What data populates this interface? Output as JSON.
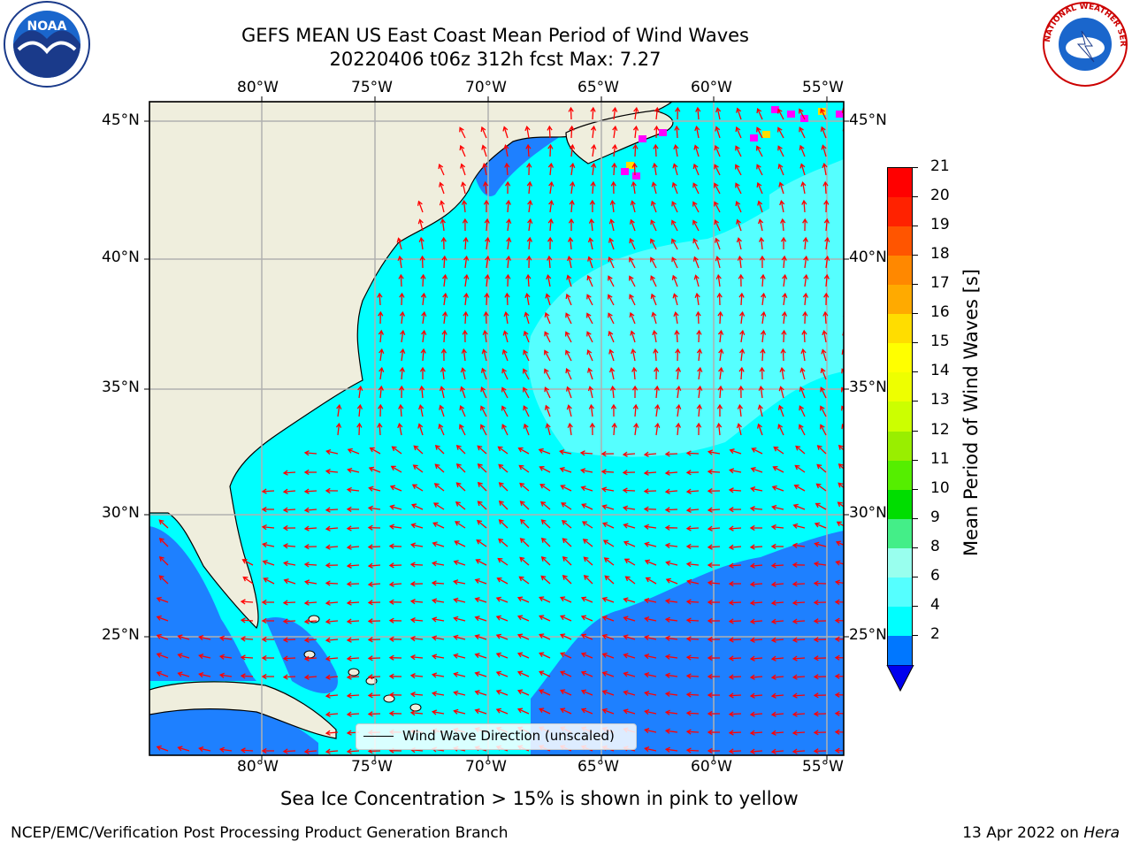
{
  "title": {
    "line1": "GEFS MEAN US East Coast Mean Period of Wind Waves",
    "line2": "20220406 t06z 312h fcst   Max: 7.27"
  },
  "axes": {
    "lon_labels": [
      "80°W",
      "75°W",
      "70°W",
      "65°W",
      "60°W",
      "55°W"
    ],
    "lat_labels": [
      "45°N",
      "40°N",
      "35°N",
      "30°N",
      "25°N"
    ]
  },
  "legend": {
    "label": "Wind Wave Direction (unscaled)"
  },
  "colorbar": {
    "label": "Mean Period of Wind Waves [s]",
    "ticks": [
      "21",
      "20",
      "19",
      "18",
      "17",
      "16",
      "15",
      "14",
      "13",
      "12",
      "11",
      "10",
      "9",
      "8",
      "6",
      "4",
      "2"
    ],
    "colors": [
      "#ff0000",
      "#ff2200",
      "#ff5500",
      "#ff8800",
      "#ffaa00",
      "#ffdd00",
      "#ffff00",
      "#eeff00",
      "#ccff00",
      "#99ee00",
      "#55ee00",
      "#00dd00",
      "#44ee88",
      "#99ffee",
      "#55ffff",
      "#00ffff",
      "#0077ff"
    ],
    "extend_color": "#0000ee"
  },
  "caption": "Sea Ice Concentration > 15% is shown in pink to yellow",
  "footer": {
    "left": "NCEP/EMC/Verification Post Processing Product Generation Branch",
    "right_prefix": "13 Apr 2022 on ",
    "right_host": "Hera"
  },
  "logos": {
    "left": "NOAA",
    "right_text": "NATIONAL WEATHER SERVICE"
  },
  "colors": {
    "land": "#efeedd",
    "ocean_main": "#00ffff",
    "ocean_light": "#55ffff",
    "ocean_low": "#1e80ff",
    "arrow": "#ff0000",
    "ice_pink": "#ff00ff",
    "ice_yellow": "#ffdd00"
  }
}
